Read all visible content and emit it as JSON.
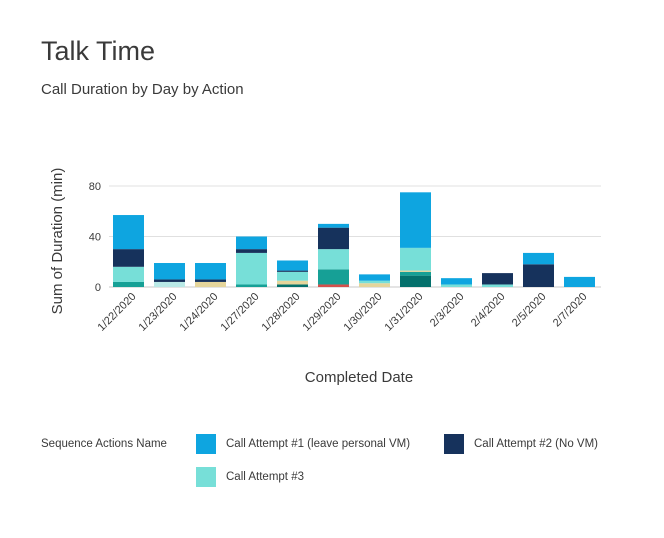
{
  "header": {
    "title": "Talk Time",
    "subtitle": "Call Duration by Day by Action"
  },
  "legend": {
    "title": "Sequence Actions Name",
    "items": [
      {
        "label": "Call Attempt #1 (leave personal VM)",
        "color": "#0ea5e0"
      },
      {
        "label": "Call Attempt #2 (No VM)",
        "color": "#16325c"
      },
      {
        "label": "Call Attempt #3",
        "color": "#77dfd8"
      }
    ]
  },
  "chart_data": {
    "type": "bar",
    "stacked": true,
    "xlabel": "Completed Date",
    "ylabel": "Sum of Duration (min)",
    "ylim": [
      0,
      80
    ],
    "yticks": [
      0,
      40,
      80
    ],
    "grid": true,
    "legend_position": "bottom",
    "categories": [
      "1/22/2020",
      "1/23/2020",
      "1/24/2020",
      "1/27/2020",
      "1/28/2020",
      "1/29/2020",
      "1/30/2020",
      "1/31/2020",
      "2/3/2020",
      "2/4/2020",
      "2/5/2020",
      "2/7/2020"
    ],
    "series": [
      {
        "color": "#d4504c",
        "values": [
          0,
          0,
          0,
          0,
          0,
          2,
          0,
          0,
          0,
          0,
          0,
          0
        ]
      },
      {
        "color": "#04706c",
        "values": [
          0,
          0,
          0,
          0,
          2,
          0,
          0,
          9,
          0,
          0,
          0,
          0
        ]
      },
      {
        "color": "#16a096",
        "values": [
          4,
          0,
          0,
          2,
          0,
          12,
          0,
          3,
          0,
          0,
          0,
          0
        ]
      },
      {
        "color": "#e5d59b",
        "values": [
          0,
          0,
          4,
          0,
          3,
          0,
          3,
          1,
          0,
          0,
          0,
          0
        ]
      },
      {
        "color": "#b9e9e6",
        "values": [
          0,
          4,
          0,
          0,
          0,
          0,
          0,
          0,
          0,
          0,
          0,
          0
        ]
      },
      {
        "name": "Call Attempt #3",
        "color": "#77dfd8",
        "values": [
          12,
          0,
          0,
          25,
          7,
          16,
          2,
          18,
          2,
          2,
          0,
          0
        ]
      },
      {
        "name": "Call Attempt #2 (No VM)",
        "color": "#16325c",
        "values": [
          14,
          2,
          2,
          3,
          1,
          17,
          0,
          0,
          0,
          9,
          18,
          0
        ]
      },
      {
        "name": "Call Attempt #1 (leave personal VM)",
        "color": "#0ea5e0",
        "values": [
          27,
          13,
          13,
          10,
          8,
          3,
          5,
          44,
          5,
          0,
          9,
          8
        ]
      }
    ]
  }
}
